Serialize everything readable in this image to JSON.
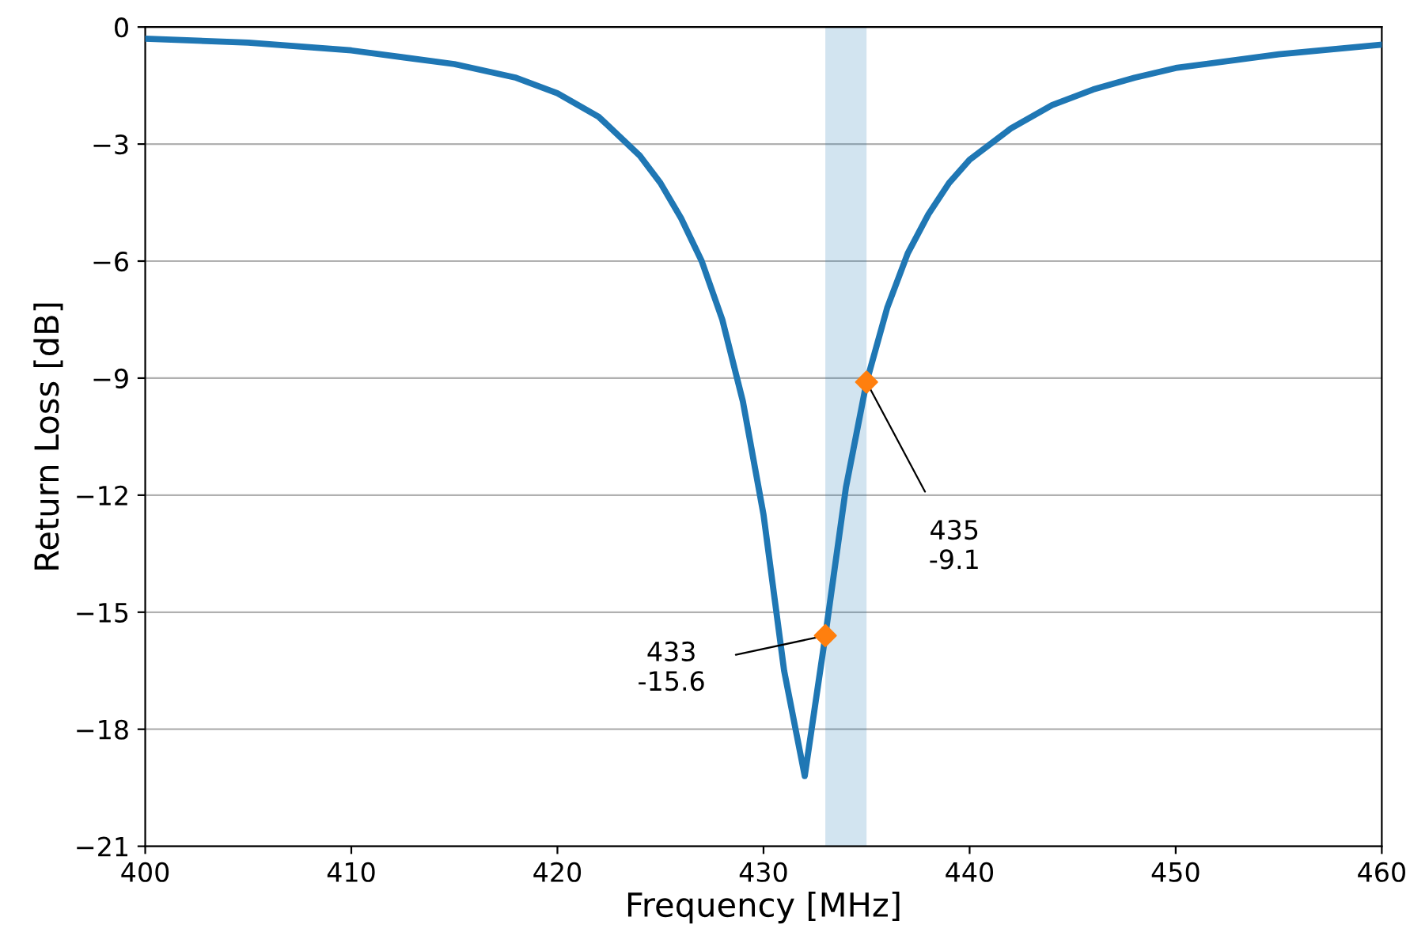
{
  "chart_data": {
    "type": "line",
    "xlabel": "Frequency [MHz]",
    "ylabel": "Return Loss [dB]",
    "series": [
      {
        "color": "#1f77b4",
        "x": [
          400,
          405,
          410,
          415,
          418,
          420,
          422,
          424,
          425,
          426,
          427,
          428,
          429,
          430,
          431,
          432,
          433,
          434,
          435,
          436,
          437,
          438,
          439,
          440,
          442,
          444,
          446,
          448,
          450,
          455,
          460
        ],
        "values": [
          -0.3,
          -0.4,
          -0.6,
          -0.95,
          -1.3,
          -1.7,
          -2.3,
          -3.3,
          -4.0,
          -4.9,
          -6.0,
          -7.5,
          -9.6,
          -12.5,
          -16.5,
          -19.2,
          -15.6,
          -11.8,
          -9.1,
          -7.2,
          -5.8,
          -4.8,
          -4.0,
          -3.4,
          -2.6,
          -2.0,
          -1.6,
          -1.3,
          -1.05,
          -0.7,
          -0.45
        ]
      },
      {
        "type": "scatter",
        "color": "#ff7f0e",
        "marker": "diamond",
        "x": [
          433,
          435
        ],
        "values": [
          -15.6,
          -9.1
        ]
      }
    ],
    "bands": [
      {
        "axis": "x",
        "from": 433,
        "to": 435,
        "color": "#1f77b4"
      }
    ],
    "annotations": [
      {
        "text": "433\n-15.6",
        "x": 433,
        "y": -15.6
      },
      {
        "text": "435\n-9.1",
        "x": 435,
        "y": -9.1
      }
    ],
    "xlim": [
      400,
      460
    ],
    "xticks": [
      400,
      410,
      420,
      430,
      440,
      450,
      460
    ],
    "ylim": [
      -21,
      0
    ],
    "yticks": [
      0,
      {
        "value": -3,
        "label": "−3"
      },
      {
        "value": -6,
        "label": "−6"
      },
      {
        "value": -9,
        "label": "−9"
      },
      {
        "value": -12,
        "label": "−12"
      },
      {
        "value": -15,
        "label": "−15"
      },
      {
        "value": -18,
        "label": "−18"
      },
      {
        "value": -21,
        "label": "−21"
      }
    ],
    "grid": "y",
    "legend": false
  }
}
